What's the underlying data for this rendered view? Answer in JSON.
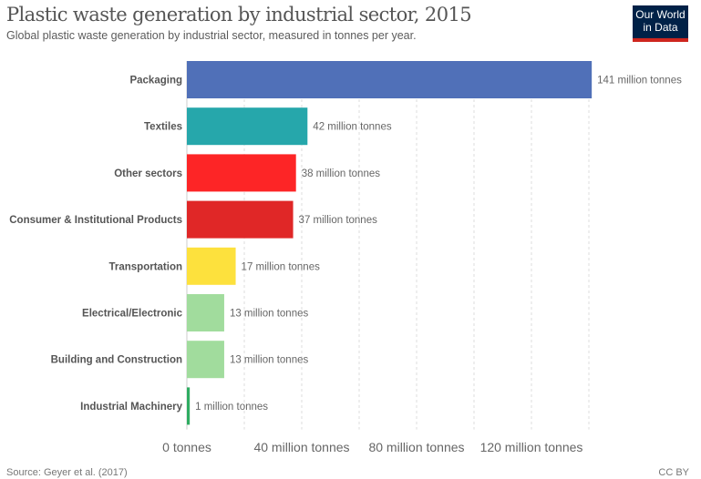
{
  "header": {
    "title": "Plastic waste generation by industrial sector, 2015",
    "subtitle": "Global plastic waste generation by industrial sector, measured in tonnes per year.",
    "logo_line1": "Our World",
    "logo_line2": "in Data"
  },
  "footer": {
    "source": "Source: Geyer et al. (2017)",
    "license": "CC BY"
  },
  "chart_data": {
    "type": "bar",
    "orientation": "horizontal",
    "title": "Plastic waste generation by industrial sector, 2015",
    "xlabel": "",
    "ylabel": "",
    "xlim": [
      0,
      140
    ],
    "grid": true,
    "unit": "million tonnes",
    "categories": [
      "Packaging",
      "Textiles",
      "Other sectors",
      "Consumer & Institutional Products",
      "Transportation",
      "Electrical/Electronic",
      "Building and Construction",
      "Industrial Machinery"
    ],
    "values": [
      141,
      42,
      38,
      37,
      17,
      13,
      13,
      1
    ],
    "value_labels": [
      "141 million tonnes",
      "42 million tonnes",
      "38 million tonnes",
      "37 million tonnes",
      "17 million tonnes",
      "13 million tonnes",
      "13 million tonnes",
      "1 million tonnes"
    ],
    "colors": [
      "#5070b8",
      "#26a7ab",
      "#fd2526",
      "#e02727",
      "#fde13d",
      "#a1dc9d",
      "#a1dc9d",
      "#2fac62"
    ],
    "x_ticks": [
      0,
      40,
      80,
      120
    ],
    "x_tick_labels": [
      "0 tonnes",
      "40 million tonnes",
      "80 million tonnes",
      "120 million tonnes"
    ],
    "gridlines": [
      20,
      40,
      60,
      80,
      100,
      120,
      140
    ]
  }
}
